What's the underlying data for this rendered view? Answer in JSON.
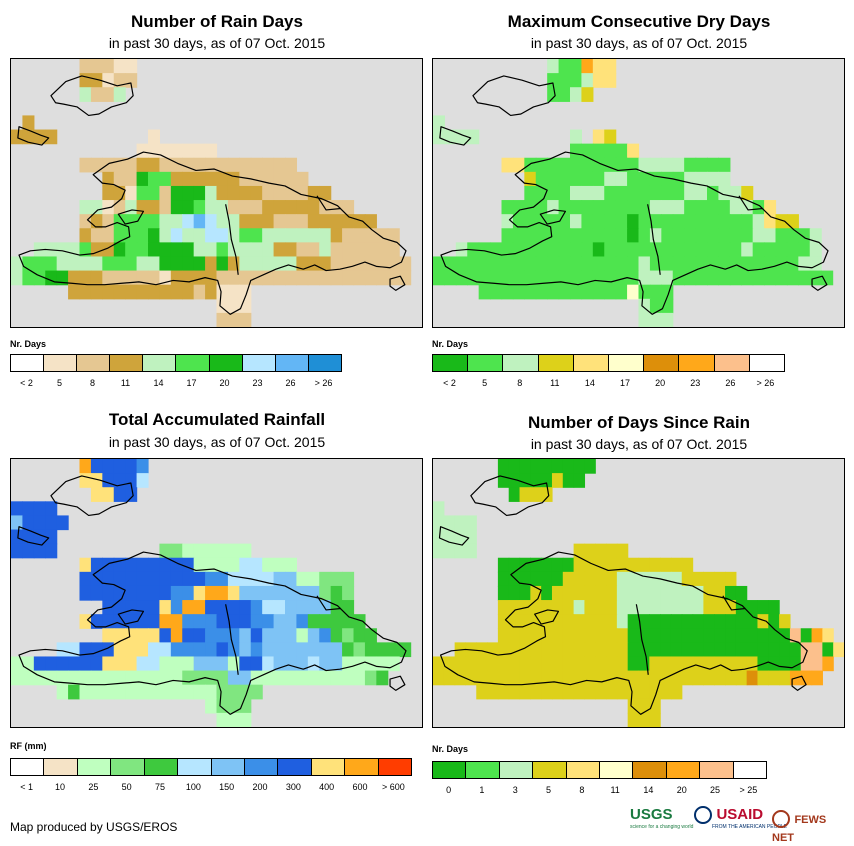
{
  "panels": [
    {
      "id": "rain-days",
      "title": "Number of Rain Days",
      "subtitle": "in past 30 days, as of 07 Oct. 2015",
      "legend_title": "Nr. Days",
      "legend_colors": [
        "#ffffff",
        "#f5e3c6",
        "#e5c792",
        "#cfa43b",
        "#bff2bf",
        "#4ee44e",
        "#19b919",
        "#b6e6ff",
        "#63b6f5",
        "#1f8fd6"
      ],
      "legend_labels": [
        "< 2",
        "5",
        "8",
        "11",
        "14",
        "17",
        "20",
        "23",
        "26",
        "> 26"
      ],
      "palette": {
        "a": "#f5e3c6",
        "b": "#e5c792",
        "c": "#cfa43b",
        "d": "#bff2bf",
        "e": "#4ee44e",
        "f": "#19b919",
        "g": "#b6e6ff",
        "h": "#63b6f5"
      },
      "grid": [
        "......bbbaa.........................",
        "......ccabb.........................",
        "......dbbd..........................",
        "....................................",
        ".c..................................",
        "cccc........a.......................",
        "...........aaaaaaa..................",
        "......bbbbbccbbbbbbbbbbbb...........",
        "........cbbfeeccccccbbbbbb..........",
        "........ccaeebfffdccccbbbbcc........",
        "......ddabdccbffeddbbbcccccbbb......",
        "......bcbeeeeddghgddcccbbbcccccc....",
        "......cbbeeefdgddggdeeddddddcbbbbb..",
        "..ddddeccfeeffffddeddddccbbdbbbbbb..",
        "deeeddddeeeddffffcfcdddddcccbbbbbbb.",
        "deeffcccbbbbbaccccbbbbbbbbbbbbbbbbb.",
        ".....cccccccccccbcaaa...............",
        "..................aaa...............",
        "..................bbb..............."
      ]
    },
    {
      "id": "dry-days",
      "title": "Maximum Consecutive Dry Days",
      "subtitle": "in past 30 days, as of 07 Oct. 2015",
      "legend_title": "Nr. Days",
      "legend_colors": [
        "#19b919",
        "#4ee44e",
        "#bff2bf",
        "#ddd11a",
        "#ffe27a",
        "#ffffcc",
        "#dd8f0a",
        "#ffa81a",
        "#fcc08c",
        "#ffffff"
      ],
      "legend_labels": [
        "< 2",
        "5",
        "8",
        "11",
        "14",
        "17",
        "20",
        "23",
        "26",
        "> 26"
      ],
      "palette": {
        "a": "#19b919",
        "b": "#4ee44e",
        "c": "#bff2bf",
        "d": "#ddd11a",
        "e": "#ffe27a",
        "f": "#ffffcc",
        "g": "#dd8f0a",
        "h": "#ffa81a"
      },
      "grid": [
        "..........cbbhee....................",
        "..........bbbcee....................",
        "..........bbcd......................",
        "....................................",
        "c...................................",
        "cccc........c.ed....................",
        "............bbbbbe..................",
        "......eebbbbbbbbbbccccbbbb..........",
        "........dbbbbbbccbbbbbcccc..........",
        "........bbbbcccbbbbbbbccbccd........",
        "......bbbbcbbbbbbbbcccbbbbccbe......",
        "......cbbbbbcbbbbabbbbbbbbbbcedd....",
        "......bbbbbbbbbbbabcbbbbbbbbccbbbc..",
        "..cbbbbbbbbbbbabbbbbbbbbbbbcbbbbbc..",
        "bbbbbbbbbbbbbbbbbbcbbbbbbbbbbbbbcc..",
        "bbbbbbbbbbbbbbbbbbcccbbbbbbbbbbbbbb.",
        "....bbbbbbbbbbbbbfbbb...............",
        "..................cbb...............",
        "..................ccc..............."
      ]
    },
    {
      "id": "total-rainfall",
      "title": "Total Accumulated Rainfall",
      "subtitle": "in past 30 days, as of 07 Oct. 2015",
      "legend_title": "RF (mm)",
      "legend_colors": [
        "#ffffff",
        "#f5e3c6",
        "#bfffbf",
        "#80e680",
        "#3ec93e",
        "#b6e6ff",
        "#7ec3f5",
        "#3b8fe8",
        "#1f5fe0",
        "#ffe27a",
        "#ffa81a",
        "#ff3d00"
      ],
      "legend_labels": [
        "< 1",
        "10",
        "25",
        "50",
        "75",
        "100",
        "150",
        "200",
        "300",
        "400",
        "600",
        "> 600"
      ],
      "palette": {
        "a": "#f5e3c6",
        "b": "#bfffbf",
        "c": "#80e680",
        "d": "#3ec93e",
        "e": "#b6e6ff",
        "f": "#7ec3f5",
        "g": "#3b8fe8",
        "h": "#1f5fe0",
        "i": "#ffe27a",
        "j": "#ffa81a",
        "k": "#ff3d00"
      },
      "grid": [
        "......jhhhhg........................",
        "......iihhhe........................",
        ".......iihh.........................",
        "hhhh................................",
        "fhhhh...............................",
        "hhhh................................",
        "hhhh.........ccbbbbbb...............",
        "......ihhhhhhhhhbbbbeebbb...........",
        "......hhhhhhhhhhhggeeeeffbbccc......",
        "......hhhhhhhhggijjifffffffcdc......",
        "........hhhhhigjjhhhhgeeffffdd......",
        "......ihhhhhhjjggghhhggffgddddd.....",
        "........iiiiihjhhgggfhfffbfgdcdd....",
        "....eehhhiiieegggghgfgfffffffdcdddd.",
        "bbhhhhhhiiieebbbfffbhhefffeffbbbbb..",
        "bbbbbbbbbbbbbbbccccffbbbbbbbbbbcd...",
        "....bdbbbbbbbbbbbbcccc..............",
        ".................bccc...............",
        "..................bbb..............."
      ]
    },
    {
      "id": "days-since-rain",
      "title": "Number of Days Since Rain",
      "subtitle": "in past 30 days, as of 07 Oct. 2015",
      "legend_title": "Nr. Days",
      "legend_colors": [
        "#19b919",
        "#4ee44e",
        "#bff2bf",
        "#ddd11a",
        "#ffe27a",
        "#ffffcc",
        "#dd8f0a",
        "#ffa81a",
        "#fcc08c",
        "#ffffff"
      ],
      "legend_labels": [
        "0",
        "1",
        "3",
        "5",
        "8",
        "11",
        "14",
        "20",
        "25",
        "> 25"
      ],
      "palette": {
        "a": "#19b919",
        "b": "#4ee44e",
        "c": "#bff2bf",
        "d": "#ddd11a",
        "e": "#ffe27a",
        "f": "#ffffcc",
        "g": "#dd8f0a",
        "h": "#ffa81a",
        "i": "#fcc08c"
      },
      "grid": [
        "......aaaaaaaaa.....................",
        "......aaaaadaa......................",
        ".......addd.........................",
        "c...................................",
        "cccc................................",
        "cccc................................",
        "cccc.........ddddd..................",
        "......aaaaaaaddddddddddd............",
        "......aaaaaadddddccccccddddd........",
        "......aaadaddddddccccccccddaa.......",
        "......dddddddcdddccccccccdddaaaa....",
        "......dddddddddddcaaaaaaaaaaaadad...",
        "......ddddddddddddaaaaaaaaaaaaaaaiahe",
        "..ddddddddddddddddaaaaaaaaaaaaaaaaiiae",
        "ddddddddddddddddddaaddddddddddaaaaiih",
        "dddddddddddddddddddddddddddddgdddhhh.",
        "....ddddddddddddddddddd.............",
        "..................ddd...............",
        "..................ddd..............."
      ]
    }
  ],
  "footer_credit": "Map produced by USGS/EROS",
  "logos": {
    "usgs": "USGS",
    "usgs_tagline": "science for a changing world",
    "usaid": "USAID",
    "usaid_tagline": "FROM THE AMERICAN PEOPLE",
    "fews": "FEWS NET"
  }
}
